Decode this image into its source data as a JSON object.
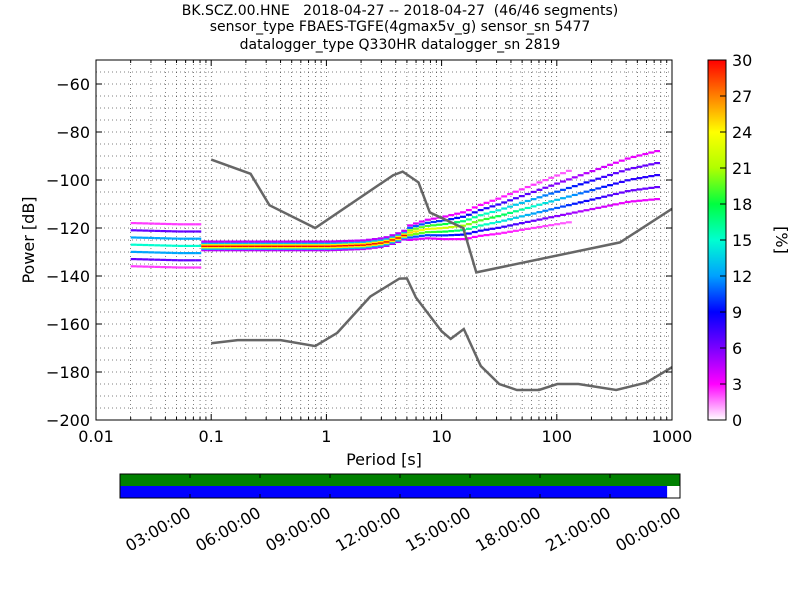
{
  "title_lines": [
    "BK.SCZ.00.HNE   2018-04-27 -- 2018-04-27  (46/46 segments)",
    "sensor_type FBAES-TGFE(4gmax5v_g) sensor_sn 5477",
    "datalogger_type Q330HR datalogger_sn 2819"
  ],
  "chart_data": [
    {
      "type": "heatmap",
      "xlabel": "Period [s]",
      "ylabel": "Power [dB]",
      "xscale": "log",
      "xlim": [
        0.01,
        1000
      ],
      "ylim": [
        -200,
        -50
      ],
      "x_ticks": [
        0.01,
        0.1,
        1,
        10,
        100,
        1000
      ],
      "x_tick_labels": [
        "0.01",
        "0.1",
        "1",
        "10",
        "100",
        "1000"
      ],
      "y_ticks": [
        -200,
        -180,
        -160,
        -140,
        -120,
        -100,
        -80,
        -60
      ],
      "y_tick_labels": [
        "−200",
        "−180",
        "−160",
        "−140",
        "−120",
        "−100",
        "−80",
        "−60"
      ],
      "grid": "dotted",
      "colorbar": {
        "label": "[%]",
        "range": [
          0,
          30
        ],
        "ticks": [
          0,
          3,
          6,
          9,
          12,
          15,
          18,
          21,
          24,
          27,
          30
        ],
        "tick_labels": [
          "0",
          "3",
          "6",
          "9",
          "12",
          "15",
          "18",
          "21",
          "24",
          "27",
          "30"
        ],
        "colors": [
          "#ffffff",
          "#ff00ff",
          "#7a00ff",
          "#0000ff",
          "#00a0ff",
          "#00ffd0",
          "#00ff40",
          "#b0ff00",
          "#ffff00",
          "#ff8000",
          "#ff0000"
        ]
      },
      "noise_models": [
        {
          "name": "high",
          "points": [
            [
              0.1,
              -91.5
            ],
            [
              0.22,
              -97.4
            ],
            [
              0.32,
              -110.5
            ],
            [
              0.8,
              -120
            ],
            [
              3.8,
              -98.0
            ],
            [
              4.6,
              -96.5
            ],
            [
              6.3,
              -101
            ],
            [
              7.9,
              -113.5
            ],
            [
              15.4,
              -120
            ],
            [
              20,
              -138.5
            ],
            [
              354,
              -126
            ],
            [
              1000,
              -112
            ]
          ]
        },
        {
          "name": "low",
          "points": [
            [
              0.1,
              -168
            ],
            [
              0.17,
              -166.7
            ],
            [
              0.4,
              -166.7
            ],
            [
              0.8,
              -169.2
            ],
            [
              1.24,
              -163.7
            ],
            [
              2.4,
              -148.6
            ],
            [
              4.3,
              -141.1
            ],
            [
              5,
              -141
            ],
            [
              6,
              -149
            ],
            [
              10,
              -163
            ],
            [
              12,
              -166.2
            ],
            [
              15.6,
              -162.1
            ],
            [
              21.9,
              -177.5
            ],
            [
              31.6,
              -185
            ],
            [
              45,
              -187.5
            ],
            [
              70,
              -187.5
            ],
            [
              101,
              -185
            ],
            [
              154,
              -185
            ],
            [
              328,
              -187.5
            ],
            [
              600,
              -184.4
            ],
            [
              1000,
              -178
            ]
          ]
        }
      ],
      "psd_mode_trace": [
        [
          0.02,
          -127
        ],
        [
          0.05,
          -127.5
        ],
        [
          0.1,
          -127.5
        ],
        [
          0.2,
          -127.5
        ],
        [
          0.5,
          -127.5
        ],
        [
          1,
          -127.5
        ],
        [
          2,
          -127
        ],
        [
          3,
          -126
        ],
        [
          4,
          -124
        ],
        [
          5,
          -122
        ],
        [
          7,
          -120.5
        ],
        [
          10,
          -120
        ],
        [
          15,
          -119
        ],
        [
          20,
          -117
        ],
        [
          30,
          -115
        ],
        [
          50,
          -112
        ],
        [
          100,
          -108
        ],
        [
          200,
          -104
        ],
        [
          400,
          -100
        ],
        [
          700,
          -98
        ]
      ]
    },
    {
      "type": "table",
      "description": "data availability timeline",
      "x_tick_labels": [
        "03:00:00",
        "06:00:00",
        "09:00:00",
        "12:00:00",
        "15:00:00",
        "18:00:00",
        "21:00:00",
        "00:00:00"
      ],
      "rows": [
        {
          "name": "upper",
          "color": "#008000",
          "coverage": [
            0,
            1
          ]
        },
        {
          "name": "lower",
          "color": "#0000ff",
          "coverage": [
            0,
            0.977
          ]
        }
      ]
    }
  ]
}
